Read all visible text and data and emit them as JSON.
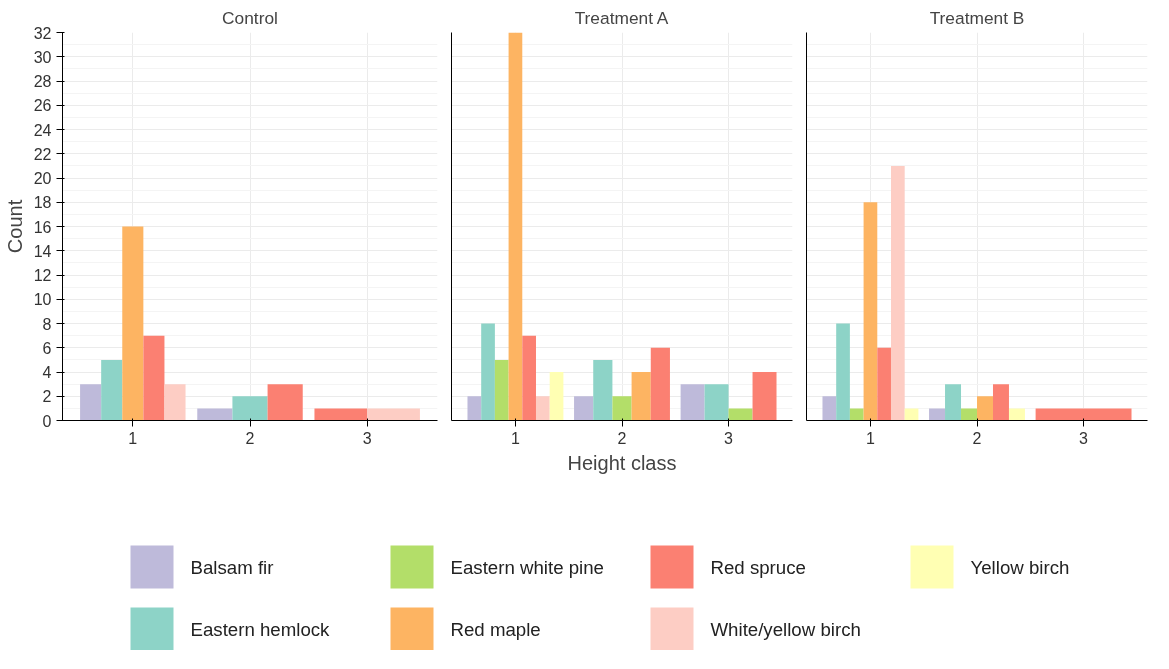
{
  "chart_data": [
    {
      "type": "bar",
      "title": "Control",
      "ylabel": "Count",
      "categories": [
        "1",
        "2",
        "3"
      ],
      "ylim": [
        0,
        32
      ],
      "yticks": [
        0,
        2,
        4,
        6,
        8,
        10,
        12,
        14,
        16,
        18,
        20,
        22,
        24,
        26,
        28,
        30,
        32
      ],
      "grid": true,
      "legend": "bottom",
      "series": [
        {
          "name": "Balsam fir",
          "color": "#bebada",
          "values": [
            3,
            1,
            null
          ]
        },
        {
          "name": "Eastern hemlock",
          "color": "#8dd3c7",
          "values": [
            5,
            2,
            null
          ]
        },
        {
          "name": "Eastern white pine",
          "color": "#b3de69",
          "values": [
            null,
            null,
            null
          ]
        },
        {
          "name": "Red maple",
          "color": "#fdb462",
          "values": [
            16,
            null,
            null
          ]
        },
        {
          "name": "Red spruce",
          "color": "#fb8072",
          "values": [
            7,
            3,
            1
          ]
        },
        {
          "name": "White/yellow birch",
          "color": "#fdcdc4",
          "values": [
            3,
            null,
            1
          ]
        },
        {
          "name": "Yellow birch",
          "color": "#ffffb3",
          "values": [
            null,
            null,
            null
          ]
        }
      ]
    },
    {
      "type": "bar",
      "title": "Treatment A",
      "xlabel": "Height class",
      "categories": [
        "1",
        "2",
        "3"
      ],
      "ylim": [
        0,
        32
      ],
      "yticks": [
        0,
        2,
        4,
        6,
        8,
        10,
        12,
        14,
        16,
        18,
        20,
        22,
        24,
        26,
        28,
        30,
        32
      ],
      "grid": true,
      "tick_labels": "x",
      "series": [
        {
          "color": "#bebada",
          "values": [
            2,
            2,
            3
          ]
        },
        {
          "color": "#8dd3c7",
          "values": [
            8,
            5,
            3
          ]
        },
        {
          "color": "#b3de69",
          "values": [
            5,
            2,
            1
          ]
        },
        {
          "color": "#fdb462",
          "values": [
            32,
            4,
            null
          ]
        },
        {
          "color": "#fb8072",
          "values": [
            7,
            6,
            4
          ]
        },
        {
          "color": "#fdcdc4",
          "values": [
            2,
            null,
            null
          ]
        },
        {
          "color": "#ffffb3",
          "values": [
            4,
            null,
            null
          ]
        }
      ]
    },
    {
      "type": "bar",
      "title": "Treatment B",
      "categories": [
        "1",
        "2",
        "3"
      ],
      "ylim": [
        0,
        32
      ],
      "yticks": [
        0,
        2,
        4,
        6,
        8,
        10,
        12,
        14,
        16,
        18,
        20,
        22,
        24,
        26,
        28,
        30,
        32
      ],
      "grid": true,
      "tick_labels": "x",
      "series": [
        {
          "color": "#bebada",
          "values": [
            2,
            1,
            null
          ]
        },
        {
          "color": "#8dd3c7",
          "values": [
            8,
            3,
            null
          ]
        },
        {
          "color": "#b3de69",
          "values": [
            1,
            1,
            null
          ]
        },
        {
          "color": "#fdb462",
          "values": [
            18,
            2,
            null
          ]
        },
        {
          "color": "#fb8072",
          "values": [
            6,
            3,
            1
          ]
        },
        {
          "color": "#fdcdc4",
          "values": [
            21,
            null,
            null
          ]
        },
        {
          "color": "#ffffb3",
          "values": [
            1,
            1,
            null
          ]
        }
      ]
    }
  ]
}
